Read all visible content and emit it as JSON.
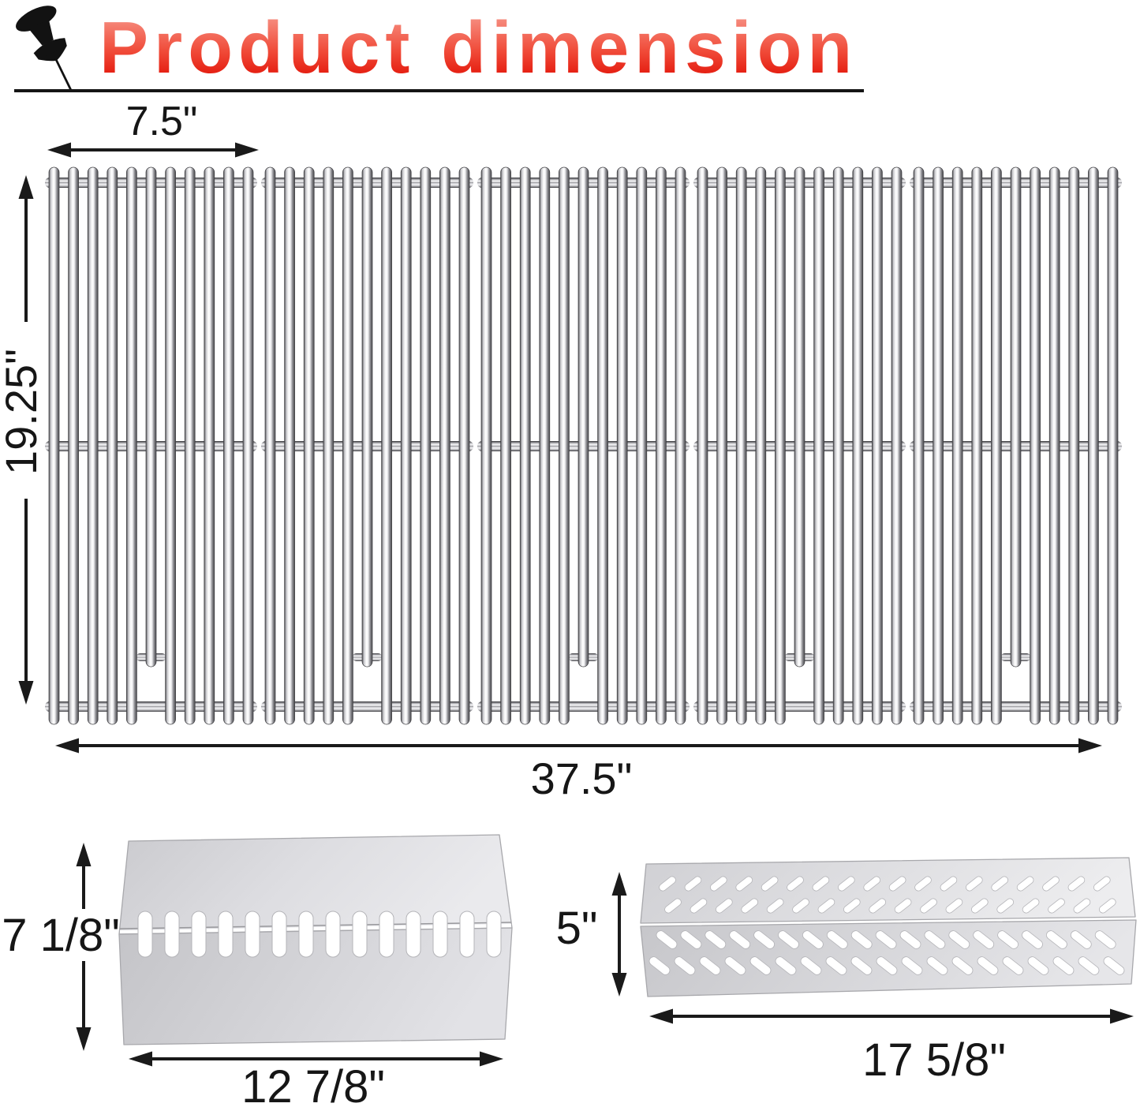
{
  "header": {
    "title": "Product dimension",
    "icon": "pushpin-icon"
  },
  "colors": {
    "title_gradient_top": "#f79a8d",
    "title_gradient_mid": "#f04a38",
    "title_gradient_bottom": "#e00b00",
    "dimension_line": "#1a1a1a",
    "metal_light": "#ffffff",
    "metal_dark": "#4e4e52",
    "plate_gray": "#d2d2d6"
  },
  "dims": {
    "grate_panel_width": "7.5\"",
    "grate_height": "19.25\"",
    "grate_total_width": "37.5\"",
    "plate_left_height": "7 1/8\"",
    "plate_left_width": "12 7/8\"",
    "plate_right_height": "5\"",
    "plate_right_width": "17 5/8\""
  },
  "figure": {
    "grate": {
      "name": "stainless cooking grate set",
      "panels": 5,
      "rods_per_panel": 11,
      "short_rod_index": 5,
      "crossbars": 3
    },
    "heat_plate_left": {
      "name": "heat plate with oval slots",
      "slot_count": 14
    },
    "heat_plate_right": {
      "name": "heat plate with diagonal vents",
      "rows": [
        {
          "count": 18,
          "dir": "/"
        },
        {
          "count": 18,
          "dir": "/"
        },
        {
          "count": 19,
          "dir": "\\"
        },
        {
          "count": 19,
          "dir": "\\"
        }
      ]
    }
  }
}
